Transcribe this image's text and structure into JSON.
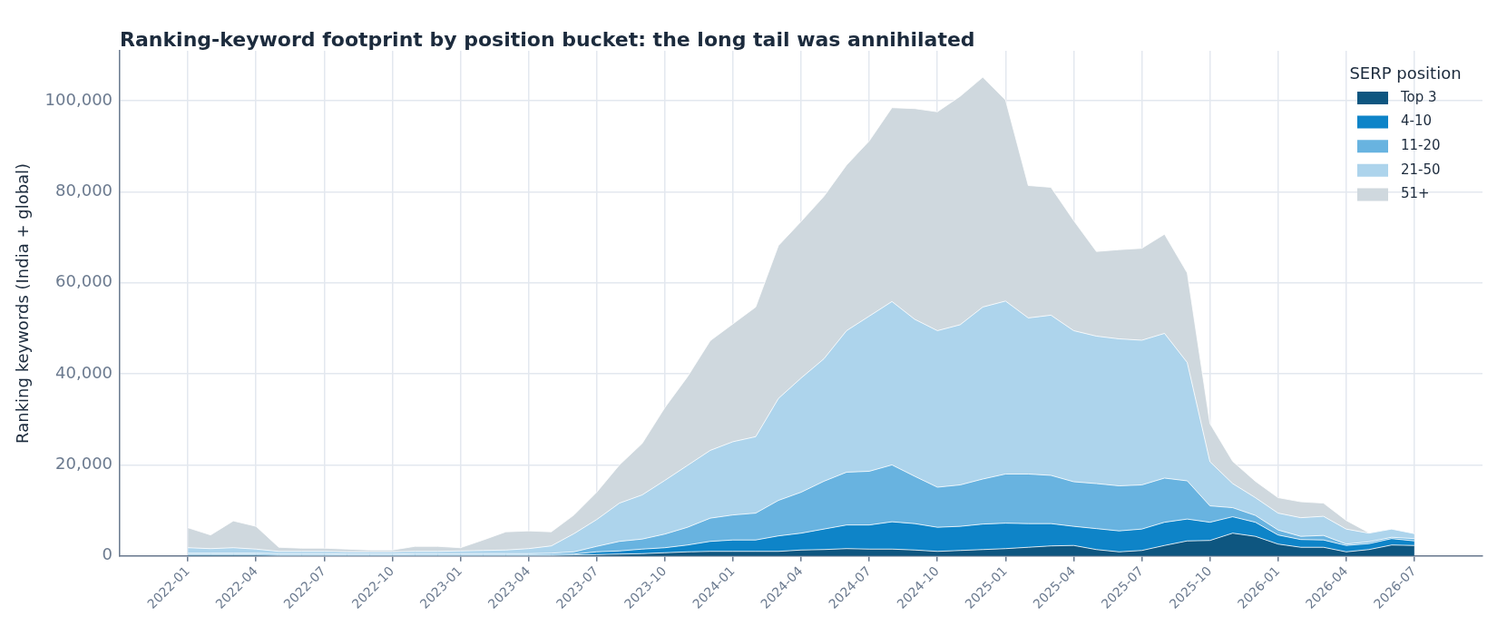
{
  "chart_data": {
    "type": "area",
    "stacked": true,
    "title": "Ranking-keyword footprint by position bucket: the long tail was annihilated",
    "ylabel": "Ranking keywords (India + global)",
    "legend_title": "SERP position",
    "legend": "top right",
    "grid": true,
    "x": [
      "2022-01",
      "2022-02",
      "2022-03",
      "2022-04",
      "2022-05",
      "2022-06",
      "2022-07",
      "2022-08",
      "2022-09",
      "2022-10",
      "2022-11",
      "2022-12",
      "2023-01",
      "2023-02",
      "2023-03",
      "2023-04",
      "2023-05",
      "2023-06",
      "2023-07",
      "2023-08",
      "2023-09",
      "2023-10",
      "2023-11",
      "2023-12",
      "2024-01",
      "2024-02",
      "2024-03",
      "2024-04",
      "2024-05",
      "2024-06",
      "2024-07",
      "2024-08",
      "2024-09",
      "2024-10",
      "2024-11",
      "2024-12",
      "2025-01",
      "2025-02",
      "2025-03",
      "2025-04",
      "2025-05",
      "2025-06",
      "2025-07",
      "2025-08",
      "2025-09",
      "2025-10",
      "2025-11",
      "2025-12",
      "2026-01",
      "2026-02",
      "2026-03",
      "2026-04",
      "2026-05",
      "2026-06",
      "2026-07"
    ],
    "xlim": [
      "2021-10",
      "2026-10"
    ],
    "xticks": [
      "2022-01",
      "2022-04",
      "2022-07",
      "2022-10",
      "2023-01",
      "2023-04",
      "2023-07",
      "2023-10",
      "2024-01",
      "2024-04",
      "2024-07",
      "2024-10",
      "2025-01",
      "2025-04",
      "2025-07",
      "2025-10",
      "2026-01",
      "2026-04",
      "2026-07"
    ],
    "ylim": [
      0,
      111000
    ],
    "yticks": [
      {
        "value": 0,
        "label": "0"
      },
      {
        "value": 20000,
        "label": "20,000"
      },
      {
        "value": 40000,
        "label": "40,000"
      },
      {
        "value": 60000,
        "label": "60,000"
      },
      {
        "value": 80000,
        "label": "80,000"
      },
      {
        "value": 100000,
        "label": "100,000"
      }
    ],
    "series": [
      {
        "name": "Top 3",
        "color": "#0e5680",
        "values": [
          200,
          200,
          200,
          200,
          100,
          100,
          100,
          100,
          100,
          100,
          100,
          100,
          100,
          100,
          100,
          100,
          100,
          200,
          300,
          400,
          500,
          700,
          900,
          1000,
          1000,
          1000,
          1000,
          1300,
          1400,
          1600,
          1500,
          1500,
          1300,
          1000,
          1200,
          1400,
          1600,
          1900,
          2200,
          2300,
          1400,
          900,
          1200,
          2300,
          3300,
          3400,
          5000,
          4300,
          2600,
          1900,
          1900,
          900,
          1400,
          2400,
          2300
        ]
      },
      {
        "name": "4-10",
        "color": "#0e84c8",
        "values": [
          200,
          200,
          200,
          200,
          200,
          200,
          200,
          200,
          200,
          200,
          200,
          200,
          200,
          200,
          200,
          200,
          200,
          200,
          600,
          700,
          1000,
          1100,
          1500,
          2200,
          2500,
          2500,
          3400,
          3700,
          4500,
          5200,
          5300,
          6000,
          5800,
          5300,
          5300,
          5600,
          5600,
          5200,
          4900,
          4200,
          4600,
          4600,
          4700,
          5100,
          4800,
          4000,
          3600,
          3100,
          2000,
          1700,
          1600,
          1400,
          1300,
          1400,
          1000
        ]
      },
      {
        "name": "11-20",
        "color": "#68b3e0",
        "values": [
          200,
          200,
          200,
          200,
          200,
          200,
          200,
          100,
          100,
          100,
          200,
          200,
          200,
          200,
          200,
          200,
          300,
          500,
          1200,
          2100,
          2200,
          3000,
          3900,
          5100,
          5500,
          5900,
          7800,
          9000,
          10500,
          11600,
          11800,
          12500,
          10400,
          8800,
          9100,
          9900,
          10800,
          10900,
          10600,
          9800,
          9900,
          9900,
          9700,
          9700,
          8400,
          3600,
          2000,
          1500,
          1100,
          700,
          1000,
          300,
          400,
          300,
          500
        ]
      },
      {
        "name": "21-50",
        "color": "#add4ec",
        "values": [
          1200,
          1000,
          1200,
          900,
          500,
          500,
          500,
          500,
          500,
          500,
          500,
          500,
          600,
          700,
          800,
          1100,
          1600,
          4000,
          5900,
          8400,
          9700,
          11800,
          13600,
          14900,
          16100,
          16800,
          22400,
          25100,
          26900,
          31100,
          34100,
          35900,
          34500,
          34400,
          35200,
          37800,
          38000,
          34300,
          35200,
          33200,
          32400,
          32300,
          31800,
          31800,
          26000,
          9700,
          5300,
          3900,
          3700,
          4100,
          4200,
          3300,
          1900,
          1800,
          1100
        ]
      },
      {
        "name": "51+",
        "color": "#cfd8de",
        "values": [
          4400,
          3000,
          5900,
          5000,
          900,
          700,
          700,
          600,
          400,
          400,
          1100,
          1100,
          700,
          2300,
          4000,
          3900,
          3100,
          4100,
          6000,
          8400,
          11300,
          16000,
          19500,
          24100,
          25900,
          28500,
          33600,
          34400,
          35700,
          36400,
          38500,
          42600,
          46300,
          48100,
          50200,
          50500,
          44200,
          29100,
          28100,
          24200,
          18600,
          19600,
          20200,
          21800,
          19700,
          8400,
          4900,
          3600,
          3400,
          3500,
          2900,
          1900,
          100,
          0,
          0
        ]
      }
    ]
  }
}
